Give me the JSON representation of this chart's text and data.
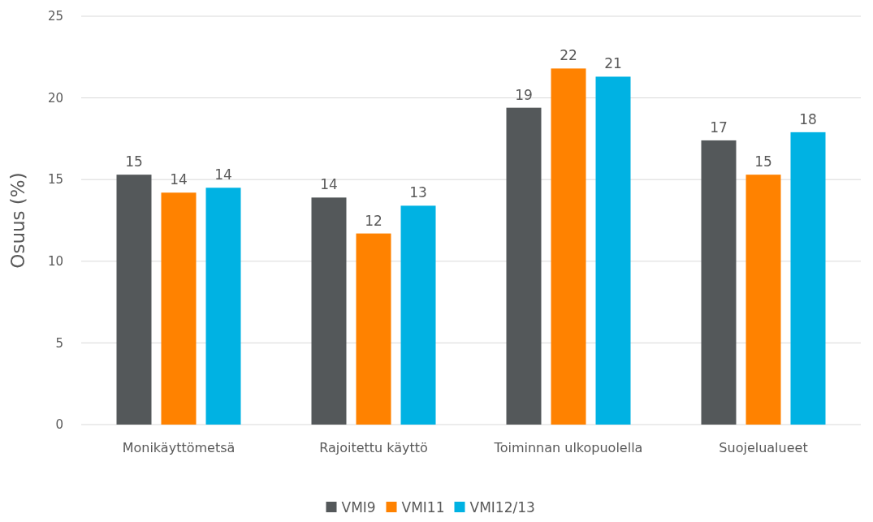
{
  "chart_data": {
    "type": "bar",
    "ylabel": "Osuus (%)",
    "categories": [
      "Monikäyttömetsä",
      "Rajoitettu käyttö",
      "Toiminnan ulkopuolella",
      "Suojelualueet"
    ],
    "series": [
      {
        "name": "VMI9",
        "color": "#54585a",
        "values": [
          15.3,
          13.9,
          19.4,
          17.4
        ],
        "value_labels": [
          "15",
          "14",
          "19",
          "17"
        ]
      },
      {
        "name": "VMI11",
        "color": "#ff8200",
        "values": [
          14.2,
          11.7,
          21.8,
          15.3
        ],
        "value_labels": [
          "14",
          "12",
          "22",
          "15"
        ]
      },
      {
        "name": "VMI12/13",
        "color": "#00b2e3",
        "values": [
          14.5,
          13.4,
          21.3,
          17.9
        ],
        "value_labels": [
          "14",
          "13",
          "21",
          "18"
        ]
      }
    ],
    "ylim": [
      0,
      25
    ],
    "yticks": [
      0,
      5,
      10,
      15,
      20,
      25
    ],
    "grid": "y",
    "legend": "bottom"
  }
}
